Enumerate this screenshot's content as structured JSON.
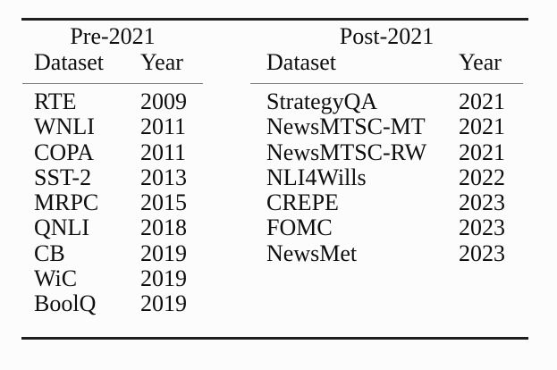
{
  "page": {
    "background": "#fcfcfc",
    "text_color": "#0e0e0e",
    "rule_color": "#1f1f1f",
    "midrule_color": "#7d7d7d"
  },
  "table": {
    "groups": [
      {
        "title": "Pre-2021",
        "columns": {
          "dataset": "Dataset",
          "year": "Year"
        },
        "rows": [
          {
            "dataset": "RTE",
            "year": "2009"
          },
          {
            "dataset": "WNLI",
            "year": "2011"
          },
          {
            "dataset": "COPA",
            "year": "2011"
          },
          {
            "dataset": "SST-2",
            "year": "2013"
          },
          {
            "dataset": "MRPC",
            "year": "2015"
          },
          {
            "dataset": "QNLI",
            "year": "2018"
          },
          {
            "dataset": "CB",
            "year": "2019"
          },
          {
            "dataset": "WiC",
            "year": "2019"
          },
          {
            "dataset": "BoolQ",
            "year": "2019"
          }
        ]
      },
      {
        "title": "Post-2021",
        "columns": {
          "dataset": "Dataset",
          "year": "Year"
        },
        "rows": [
          {
            "dataset": "StrategyQA",
            "year": "2021"
          },
          {
            "dataset": "NewsMTSC-MT",
            "year": "2021"
          },
          {
            "dataset": "NewsMTSC-RW",
            "year": "2021"
          },
          {
            "dataset": "NLI4Wills",
            "year": "2022"
          },
          {
            "dataset": "CREPE",
            "year": "2023"
          },
          {
            "dataset": "FOMC",
            "year": "2023"
          },
          {
            "dataset": "NewsMet",
            "year": "2023"
          }
        ]
      }
    ]
  }
}
